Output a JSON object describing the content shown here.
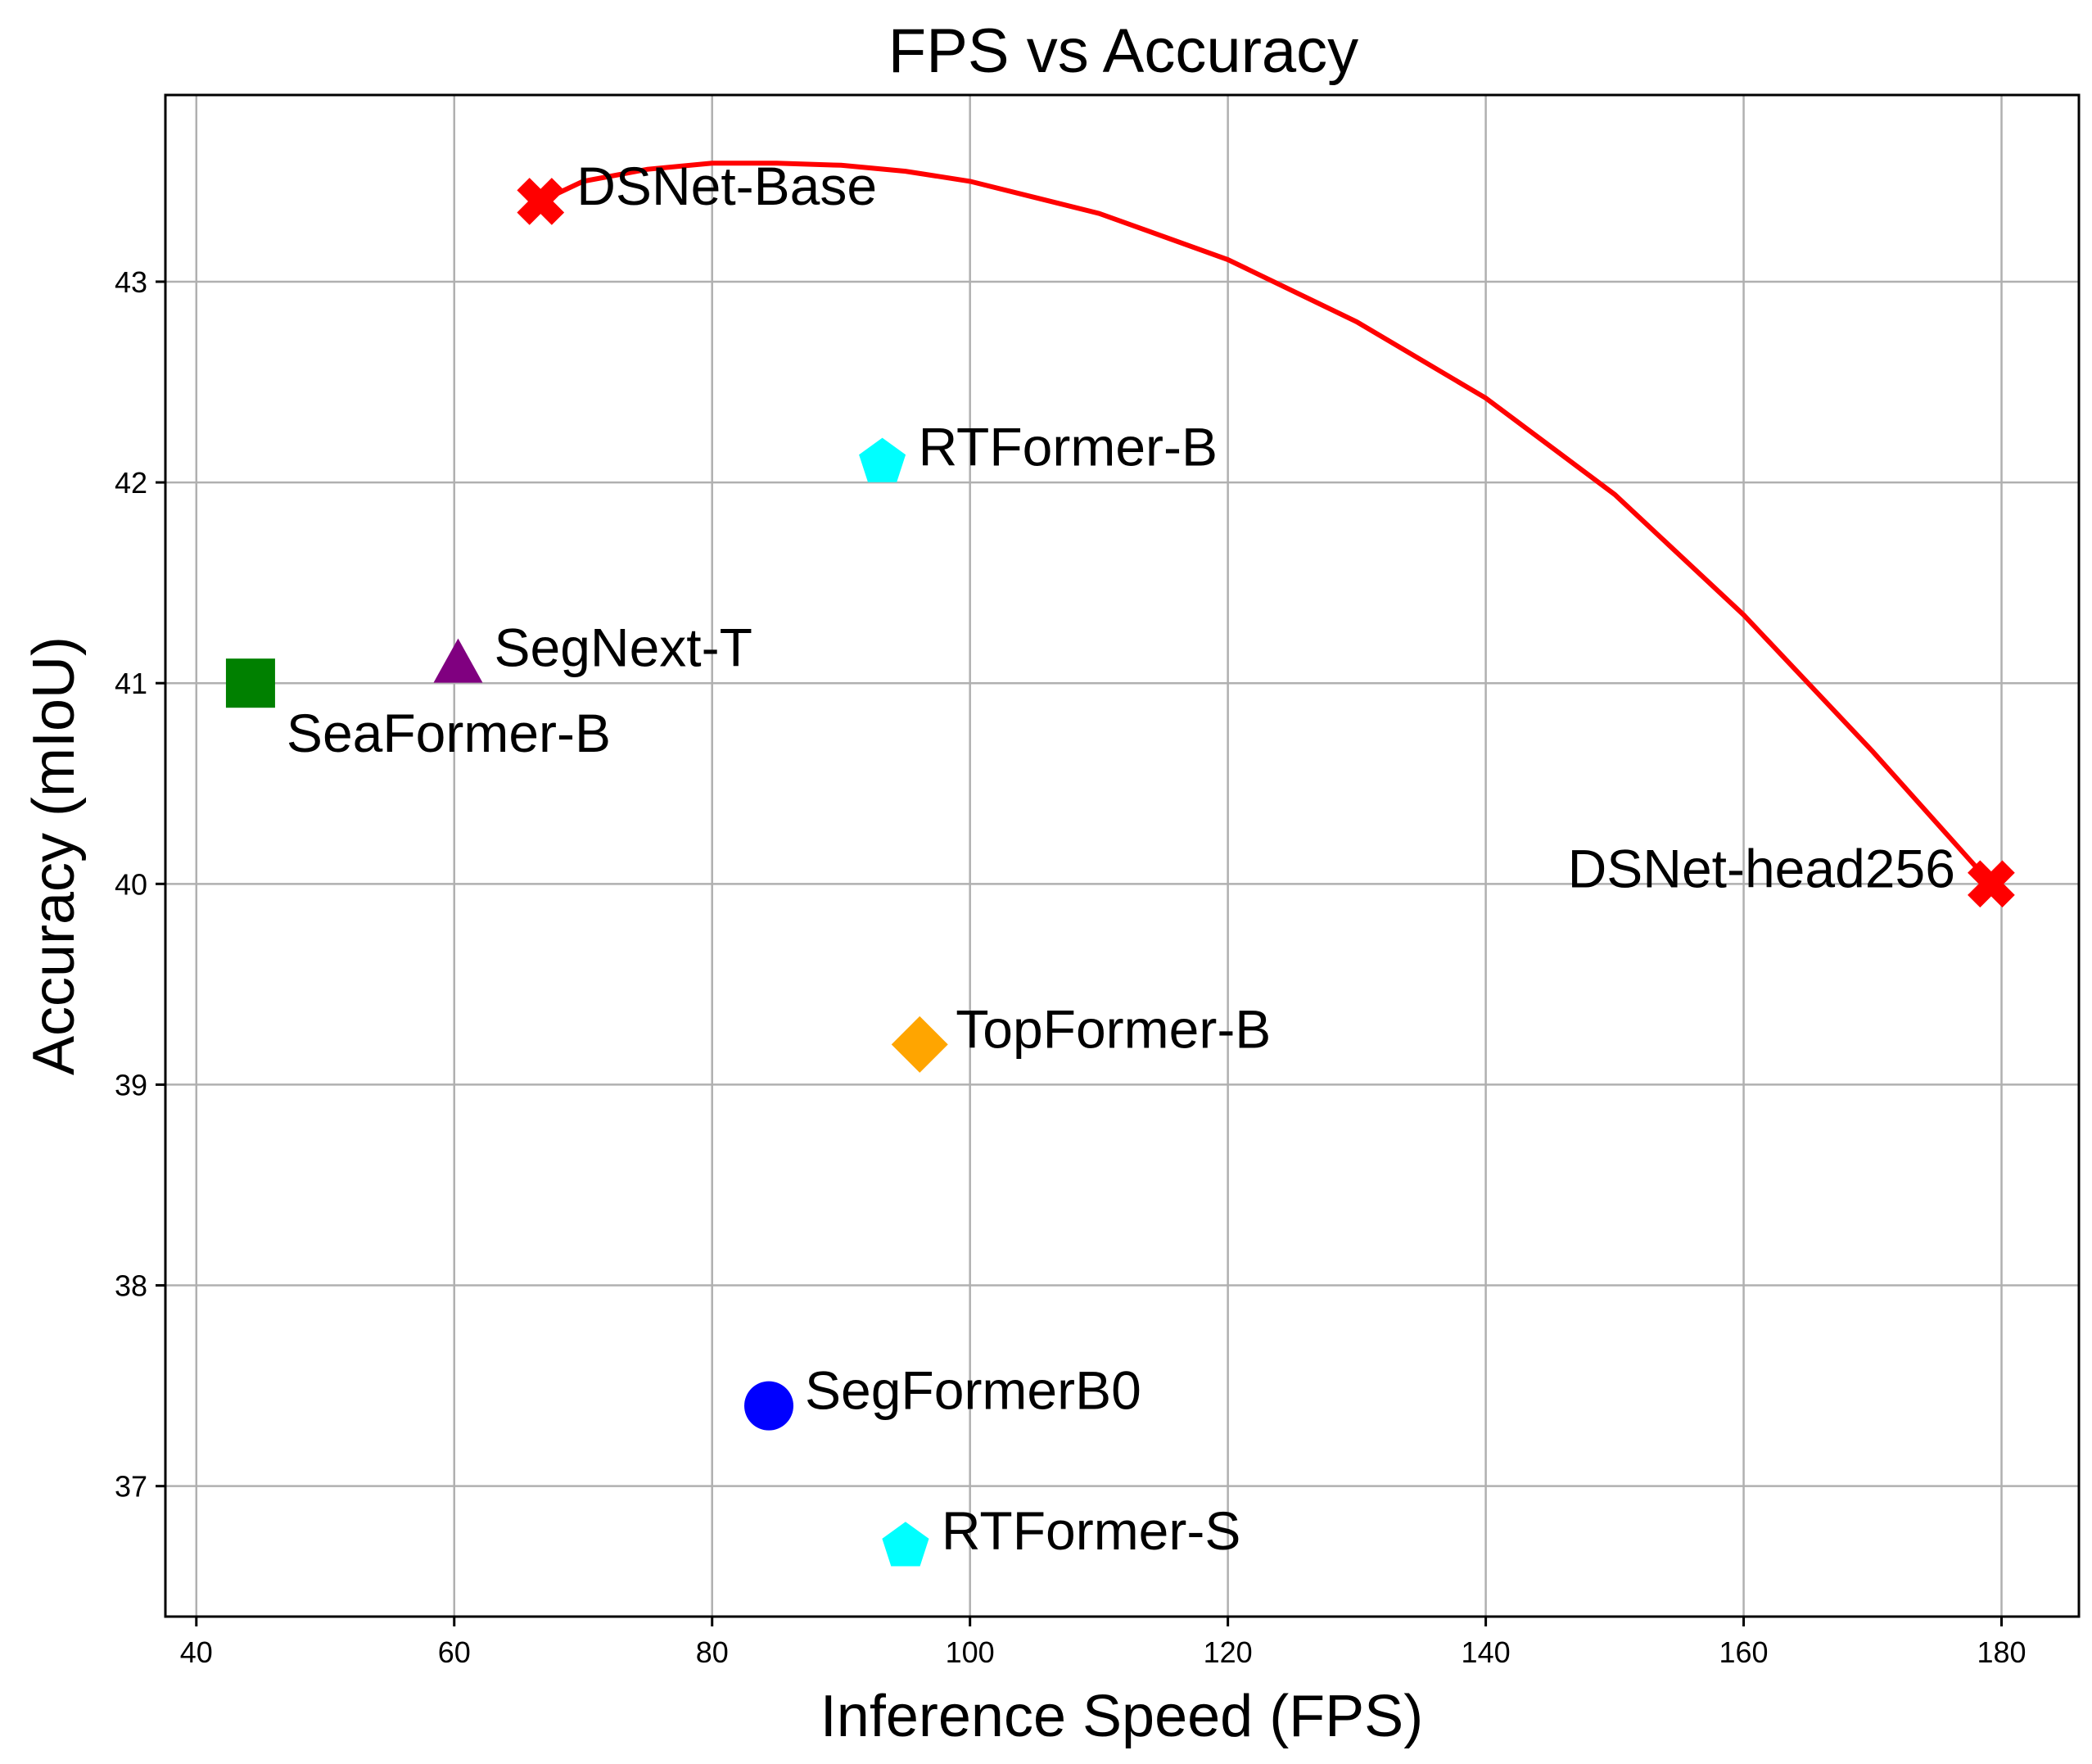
{
  "chart_data": {
    "type": "scatter",
    "title": "FPS vs Accuracy",
    "xlabel": "Inference Speed (FPS)",
    "ylabel": "Accuracy (mIoU)",
    "xlim": [
      37.6,
      186.0
    ],
    "ylim": [
      36.35,
      43.93
    ],
    "x_ticks": [
      40,
      60,
      80,
      100,
      120,
      140,
      160,
      180
    ],
    "y_ticks": [
      37,
      38,
      39,
      40,
      41,
      42,
      43
    ],
    "x_tick_labels": [
      "40",
      "60",
      "80",
      "100",
      "120",
      "140",
      "160",
      "180"
    ],
    "y_tick_labels": [
      "37",
      "38",
      "39",
      "40",
      "41",
      "42",
      "43"
    ],
    "grid": true,
    "points": [
      {
        "label": "DSNet-Base",
        "x": 66.7,
        "y": 43.4,
        "marker": "x-filled",
        "color": "#ff0000",
        "label_pos": "right"
      },
      {
        "label": "RTFormer-B",
        "x": 93.2,
        "y": 42.1,
        "marker": "pentagon",
        "color": "#00ffff",
        "label_pos": "right"
      },
      {
        "label": "SegNext-T",
        "x": 60.3,
        "y": 41.1,
        "marker": "triangle",
        "color": "#800080",
        "label_pos": "right"
      },
      {
        "label": "SeaFormer-B",
        "x": 44.2,
        "y": 41.0,
        "marker": "square",
        "color": "#008000",
        "label_pos": "below-right"
      },
      {
        "label": "DSNet-head256",
        "x": 179.2,
        "y": 40.0,
        "marker": "x-filled",
        "color": "#ff0000",
        "label_pos": "left"
      },
      {
        "label": "TopFormer-B",
        "x": 96.1,
        "y": 39.2,
        "marker": "diamond",
        "color": "#ffa500",
        "label_pos": "right"
      },
      {
        "label": "SegFormerB0",
        "x": 84.4,
        "y": 37.4,
        "marker": "circle",
        "color": "#0000ff",
        "label_pos": "right"
      },
      {
        "label": "RTFormer-S",
        "x": 95.0,
        "y": 36.7,
        "marker": "pentagon",
        "color": "#00ffff",
        "label_pos": "right"
      }
    ],
    "curve": {
      "color": "#ff0000",
      "x": [
        66.7,
        70,
        75,
        80,
        85,
        90,
        95,
        100,
        110,
        120,
        130,
        140,
        150,
        160,
        170,
        179.2
      ],
      "y": [
        43.4,
        43.5,
        43.56,
        43.59,
        43.59,
        43.58,
        43.55,
        43.5,
        43.34,
        43.11,
        42.8,
        42.42,
        41.94,
        41.34,
        40.66,
        40.0
      ]
    }
  }
}
